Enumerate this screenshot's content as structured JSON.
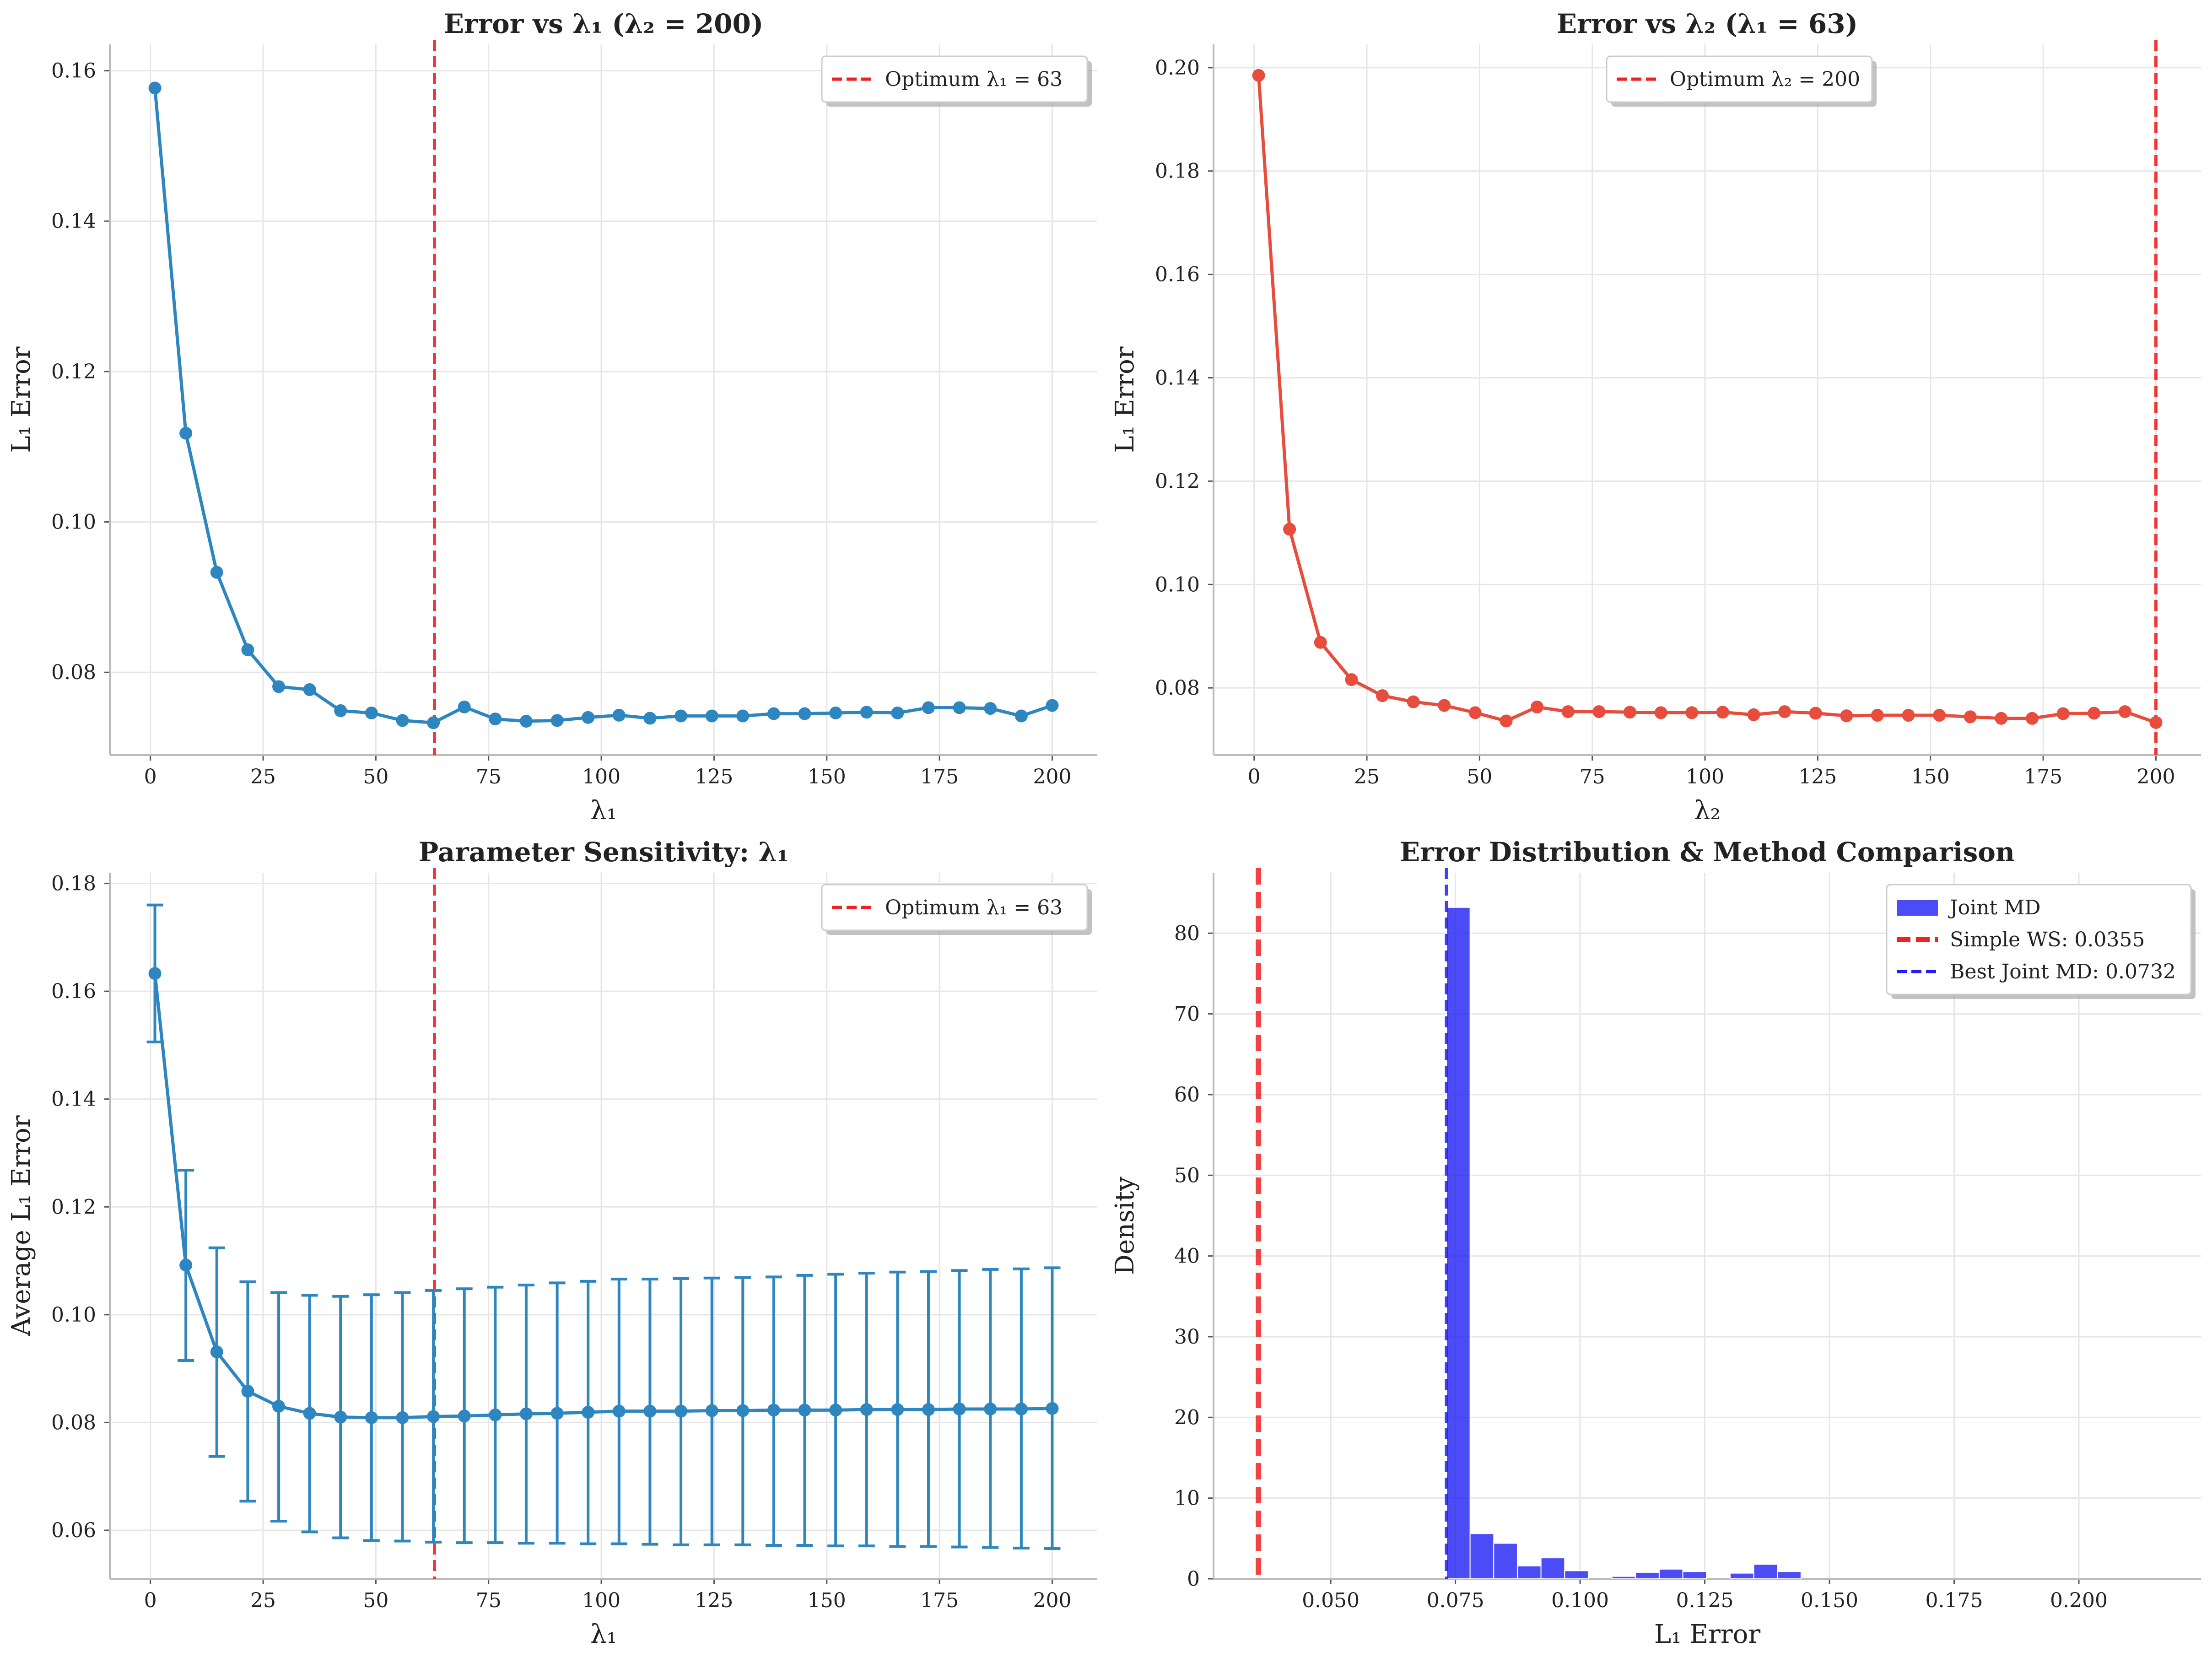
{
  "chart_data": [
    {
      "type": "line",
      "title": "Error vs λ₁ (λ₂ = 200)",
      "xlabel": "λ₁",
      "ylabel": "L₁ Error",
      "xlim": [
        -9,
        210
      ],
      "ylim": [
        0.069,
        0.1635
      ],
      "xticks": [
        "0",
        "25",
        "50",
        "75",
        "100",
        "125",
        "150",
        "175",
        "200"
      ],
      "yticks": [
        "0.08",
        "0.10",
        "0.12",
        "0.14",
        "0.16"
      ],
      "color": "#2e86c1",
      "series": [
        {
          "x": [
            1,
            7.86,
            14.72,
            21.59,
            28.45,
            35.31,
            42.17,
            49.03,
            55.9,
            62.76,
            69.62,
            76.48,
            83.34,
            90.21,
            97.07,
            103.93,
            110.79,
            117.66,
            124.52,
            131.38,
            138.24,
            145.1,
            151.97,
            158.83,
            165.69,
            172.55,
            179.41,
            186.28,
            193.14,
            200
          ],
          "values": [
            0.1577,
            0.1118,
            0.0933,
            0.083,
            0.0781,
            0.0777,
            0.0749,
            0.0746,
            0.0736,
            0.0733,
            0.0754,
            0.0738,
            0.0735,
            0.0736,
            0.074,
            0.0743,
            0.0739,
            0.0742,
            0.0742,
            0.0742,
            0.0745,
            0.0745,
            0.0746,
            0.0747,
            0.0746,
            0.0753,
            0.0753,
            0.0752,
            0.0742,
            0.0756
          ]
        }
      ],
      "vline": {
        "x": 63,
        "label": "Optimum λ₁ = 63",
        "color": "#ee2222"
      },
      "legend": "top-right",
      "grid": true
    },
    {
      "type": "line",
      "title": "Error vs λ₂ (λ₁ = 63)",
      "xlabel": "λ₂",
      "ylabel": "L₁ Error",
      "xlim": [
        -9,
        210
      ],
      "ylim": [
        0.067,
        0.2045
      ],
      "xticks": [
        "0",
        "25",
        "50",
        "75",
        "100",
        "125",
        "150",
        "175",
        "200"
      ],
      "yticks": [
        "0.08",
        "0.10",
        "0.12",
        "0.14",
        "0.16",
        "0.18",
        "0.20"
      ],
      "color": "#e74c3c",
      "series": [
        {
          "x": [
            1,
            7.86,
            14.72,
            21.59,
            28.45,
            35.31,
            42.17,
            49.03,
            55.9,
            62.76,
            69.62,
            76.48,
            83.34,
            90.21,
            97.07,
            103.93,
            110.79,
            117.66,
            124.52,
            131.38,
            138.24,
            145.1,
            151.97,
            158.83,
            165.69,
            172.55,
            179.41,
            186.28,
            193.14,
            200
          ],
          "values": [
            0.1985,
            0.1107,
            0.0888,
            0.0816,
            0.0785,
            0.0773,
            0.0766,
            0.0752,
            0.0736,
            0.0763,
            0.0754,
            0.0754,
            0.0753,
            0.0752,
            0.0752,
            0.0753,
            0.0748,
            0.0754,
            0.0751,
            0.0746,
            0.0747,
            0.0747,
            0.0747,
            0.0744,
            0.0741,
            0.0741,
            0.075,
            0.0751,
            0.0754,
            0.0733
          ]
        }
      ],
      "vline": {
        "x": 200,
        "label": "Optimum λ₂ = 200",
        "color": "#ee2222"
      },
      "legend": "upper-center",
      "grid": true
    },
    {
      "type": "line",
      "title": "Parameter Sensitivity: λ₁",
      "xlabel": "λ₁",
      "ylabel": "Average L₁ Error",
      "xlim": [
        -9,
        210
      ],
      "ylim": [
        0.051,
        0.182
      ],
      "xticks": [
        "0",
        "25",
        "50",
        "75",
        "100",
        "125",
        "150",
        "175",
        "200"
      ],
      "yticks": [
        "0.06",
        "0.08",
        "0.10",
        "0.12",
        "0.14",
        "0.16",
        "0.18"
      ],
      "color": "#2e86c1",
      "series": [
        {
          "x": [
            1,
            7.86,
            14.72,
            21.59,
            28.45,
            35.31,
            42.17,
            49.03,
            55.9,
            62.76,
            69.62,
            76.48,
            83.34,
            90.21,
            97.07,
            103.93,
            110.79,
            117.66,
            124.52,
            131.38,
            138.24,
            145.1,
            151.97,
            158.83,
            165.69,
            172.55,
            179.41,
            186.28,
            193.14,
            200
          ],
          "values": [
            0.1633,
            0.1092,
            0.0931,
            0.0858,
            0.083,
            0.0817,
            0.081,
            0.0809,
            0.0809,
            0.0811,
            0.0812,
            0.0814,
            0.0816,
            0.0817,
            0.0819,
            0.0821,
            0.0821,
            0.0821,
            0.0822,
            0.0822,
            0.0823,
            0.0823,
            0.0823,
            0.0824,
            0.0824,
            0.0824,
            0.0825,
            0.0825,
            0.0825,
            0.0826
          ],
          "err_low": [
            0.1506,
            0.0915,
            0.0737,
            0.0654,
            0.0617,
            0.0597,
            0.0586,
            0.0581,
            0.058,
            0.0578,
            0.0577,
            0.0577,
            0.0576,
            0.0576,
            0.0575,
            0.0575,
            0.0574,
            0.0573,
            0.0573,
            0.0573,
            0.0572,
            0.0572,
            0.0571,
            0.0571,
            0.057,
            0.057,
            0.0569,
            0.0568,
            0.0567,
            0.0566
          ],
          "err_high": [
            0.176,
            0.1268,
            0.1124,
            0.1061,
            0.1041,
            0.1036,
            0.1034,
            0.1037,
            0.1041,
            0.1045,
            0.1048,
            0.1051,
            0.1055,
            0.1059,
            0.1062,
            0.1066,
            0.1066,
            0.1067,
            0.1068,
            0.1069,
            0.107,
            0.1073,
            0.1075,
            0.1077,
            0.1079,
            0.108,
            0.1082,
            0.1084,
            0.1085,
            0.1087
          ]
        }
      ],
      "vline": {
        "x": 63,
        "label": "Optimum λ₁ = 63",
        "color": "#ee2222"
      },
      "legend": "top-right",
      "grid": true
    },
    {
      "type": "bar",
      "title": "Error Distribution & Method Comparison",
      "xlabel": "L₁ Error",
      "ylabel": "Density",
      "xlim": [
        0.0265,
        0.2245
      ],
      "ylim": [
        0,
        87.5
      ],
      "xticks": [
        "0.050",
        "0.075",
        "0.100",
        "0.125",
        "0.150",
        "0.175",
        "0.200"
      ],
      "yticks": [
        "0",
        "10",
        "20",
        "30",
        "40",
        "50",
        "60",
        "70",
        "80"
      ],
      "histogram": {
        "name": "Joint MD",
        "color": "#1f1ff5",
        "bin_start": 0.0732,
        "bin_width": 0.00474,
        "values": [
          83.2,
          5.6,
          4.4,
          1.6,
          2.6,
          1.0,
          0,
          0.3,
          0.8,
          1.2,
          0.9,
          0,
          0.7,
          1.8,
          0.9
        ]
      },
      "vlines": [
        {
          "x": 0.0355,
          "label": "Simple WS: 0.0355",
          "color": "#ee2222",
          "style": "dashed-thick"
        },
        {
          "x": 0.0732,
          "label": "Best Joint MD: 0.0732",
          "color": "#1f1ff5",
          "style": "dashed"
        }
      ],
      "legend": "top-right",
      "grid": true
    }
  ]
}
